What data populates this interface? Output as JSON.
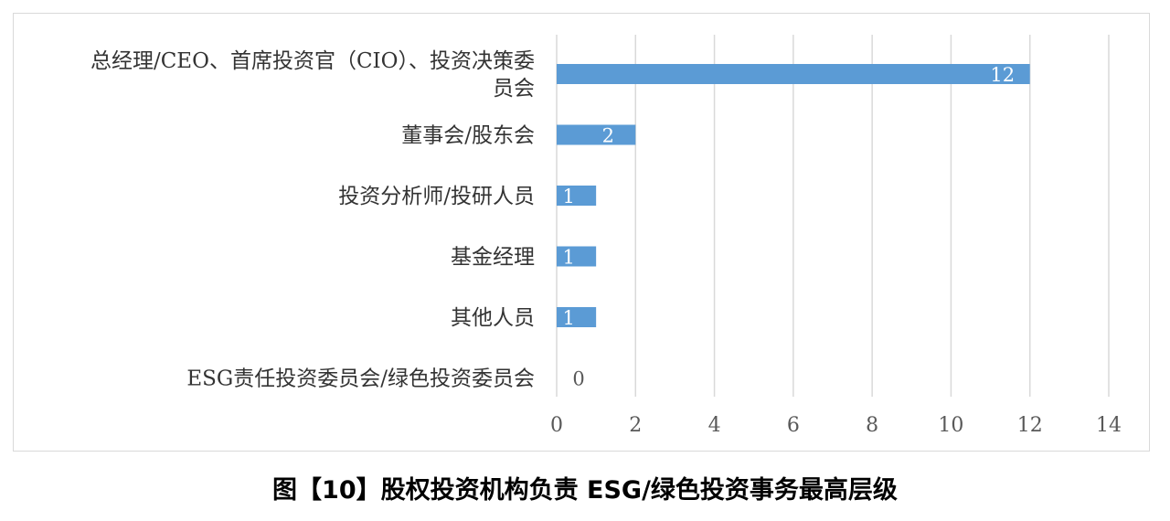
{
  "figure_caption": "图【10】股权投资机构负责 ESG/绿色投资事务最高层级",
  "colors": {
    "bar": "#5b9bd5",
    "gridline": "#d9d9d9",
    "label_inside": "#ffffff",
    "label_outside": "#595959"
  },
  "chart_data": {
    "type": "bar",
    "orientation": "horizontal",
    "categories": [
      "总经理/CEO、首席投资官（CIO）、投资决策委员会",
      "董事会/股东会",
      "投资分析师/投研人员",
      "基金经理",
      "其他人员",
      "ESG责任投资委员会/绿色投资委员会"
    ],
    "values": [
      12,
      2,
      1,
      1,
      1,
      0
    ],
    "xlim": [
      0,
      14
    ],
    "xticks": [
      0,
      2,
      4,
      6,
      8,
      10,
      12,
      14
    ],
    "grid": true,
    "data_labels": true,
    "legend": "none"
  }
}
